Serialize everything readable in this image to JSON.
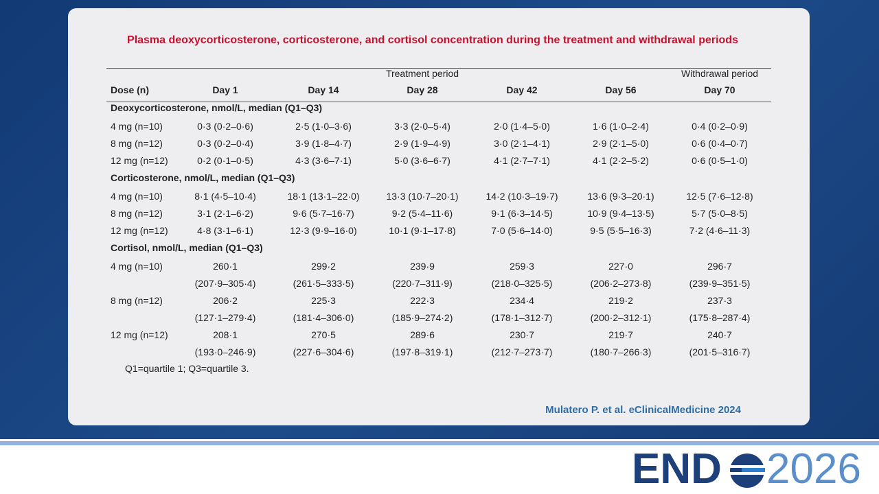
{
  "title": "Plasma deoxycorticosterone, corticosterone, and cortisol concentration during the treatment and withdrawal periods",
  "table": {
    "groups": [
      "Treatment period",
      "Withdrawal period"
    ],
    "columns": [
      "Dose (n)",
      "Day 1",
      "Day 14",
      "Day 28",
      "Day 42",
      "Day 56",
      "Day 70"
    ],
    "sections": [
      {
        "title": "Deoxycorticosterone, nmol/L, median (Q1–Q3)",
        "rows": [
          {
            "dose": "4 mg (n=10)",
            "cells": [
              "0·3 (0·2–0·6)",
              "2·5 (1·0–3·6)",
              "3·3 (2·0–5·4)",
              "2·0 (1·4–5·0)",
              "1·6 (1·0–2·4)",
              "0·4 (0·2–0·9)"
            ]
          },
          {
            "dose": "8 mg (n=12)",
            "cells": [
              "0·3 (0·2–0·4)",
              "3·9 (1·8–4·7)",
              "2·9 (1·9–4·9)",
              "3·0 (2·1–4·1)",
              "2·9 (2·1–5·0)",
              "0·6 (0·4–0·7)"
            ]
          },
          {
            "dose": "12 mg (n=12)",
            "cells": [
              "0·2 (0·1–0·5)",
              "4·3 (3·6–7·1)",
              "5·0 (3·6–6·7)",
              "4·1 (2·7–7·1)",
              "4·1 (2·2–5·2)",
              "0·6 (0·5–1·0)"
            ]
          }
        ]
      },
      {
        "title": "Corticosterone, nmol/L, median (Q1–Q3)",
        "rows": [
          {
            "dose": "4 mg (n=10)",
            "cells": [
              "8·1 (4·5–10·4)",
              "18·1 (13·1–22·0)",
              "13·3 (10·7–20·1)",
              "14·2 (10·3–19·7)",
              "13·6 (9·3–20·1)",
              "12·5 (7·6–12·8)"
            ]
          },
          {
            "dose": "8 mg (n=12)",
            "cells": [
              "3·1 (2·1–6·2)",
              "9·6 (5·7–16·7)",
              "9·2 (5·4–11·6)",
              "9·1 (6·3–14·5)",
              "10·9 (9·4–13·5)",
              "5·7 (5·0–8·5)"
            ]
          },
          {
            "dose": "12 mg (n=12)",
            "cells": [
              "4·8 (3·1–6·1)",
              "12·3 (9·9–16·0)",
              "10·1 (9·1–17·8)",
              "7·0 (5·6–14·0)",
              "9·5 (5·5–16·3)",
              "7·2 (4·6–11·3)"
            ]
          }
        ]
      },
      {
        "title": "Cortisol, nmol/L, median (Q1–Q3)",
        "rows": [
          {
            "dose": "4 mg (n=10)",
            "cells": [
              "260·1",
              "299·2",
              "239·9",
              "259·3",
              "227·0",
              "296·7"
            ],
            "ranges": [
              "(207·9–305·4)",
              "(261·5–333·5)",
              "(220·7–311·9)",
              "(218·0–325·5)",
              "(206·2–273·8)",
              "(239·9–351·5)"
            ]
          },
          {
            "dose": "8 mg (n=12)",
            "cells": [
              "206·2",
              "225·3",
              "222·3",
              "234·4",
              "219·2",
              "237·3"
            ],
            "ranges": [
              "(127·1–279·4)",
              "(181·4–306·0)",
              "(185·9–274·2)",
              "(178·1–312·7)",
              "(200·2–312·1)",
              "(175·8–287·4)"
            ]
          },
          {
            "dose": "12 mg (n=12)",
            "cells": [
              "208·1",
              "270·5",
              "289·6",
              "230·7",
              "219·7",
              "240·7"
            ],
            "ranges": [
              "(193·0–246·9)",
              "(227·6–304·6)",
              "(197·8–319·1)",
              "(212·7–273·7)",
              "(180·7–266·3)",
              "(201·5–316·7)"
            ]
          }
        ]
      }
    ],
    "footnote": "Q1=quartile 1; Q3=quartile 3."
  },
  "citation": "Mulatero P. et al. eClinicalMedicine 2024",
  "logo": {
    "left": "END",
    "right": "2026"
  }
}
